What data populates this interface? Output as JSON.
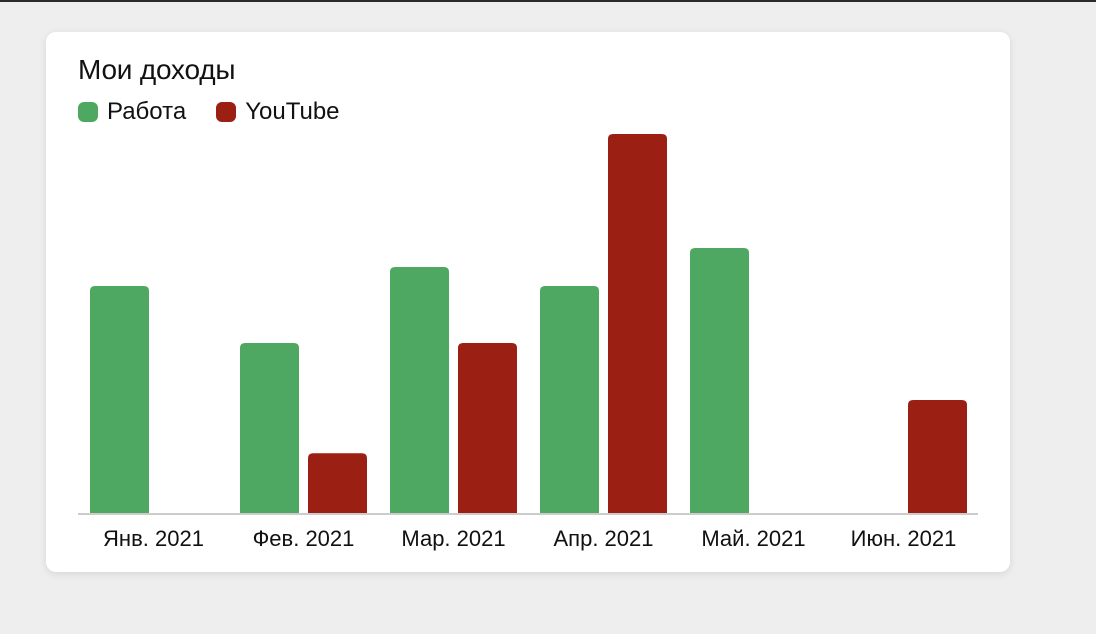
{
  "chart_data": {
    "type": "bar",
    "title": "Мои доходы",
    "categories": [
      "Янв. 2021",
      "Фев. 2021",
      "Мар. 2021",
      "Апр. 2021",
      "Май. 2021",
      "Июн. 2021"
    ],
    "series": [
      {
        "name": "Работа",
        "color": "#4ea862",
        "values": [
          60,
          45,
          65,
          60,
          70,
          0
        ]
      },
      {
        "name": "YouTube",
        "color": "#9c1f14",
        "values": [
          0,
          16,
          45,
          100,
          0,
          30
        ]
      }
    ],
    "xlabel": "",
    "ylabel": "",
    "ylim": [
      0,
      100
    ],
    "grid": false,
    "legend": "top-left"
  }
}
